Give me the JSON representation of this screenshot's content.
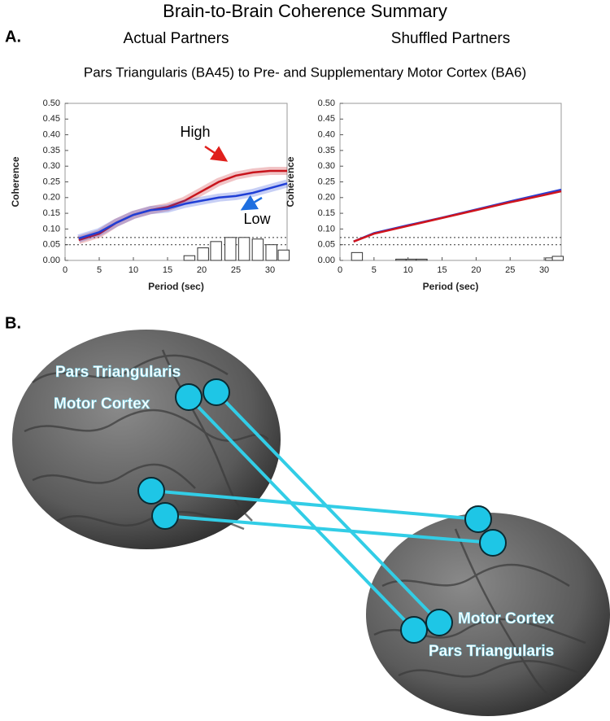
{
  "title": "Brain-to-Brain Coherence Summary",
  "panel_a_label": "A.",
  "subtitle": "Pars Triangularis (BA45) to Pre- and Supplementary Motor Cortex (BA6)",
  "panel_b_label": "B.",
  "brain_labels": {
    "left": [
      "Pars Triangularis",
      "Motor Cortex"
    ],
    "right": [
      "Motor Cortex",
      "Pars Triangularis"
    ]
  },
  "chart_data": [
    {
      "type": "line",
      "title": "Actual Partners",
      "x_label": "Period (sec)",
      "y_label": "Coherence",
      "xlim": [
        0,
        32.5
      ],
      "xticks": [
        0,
        5,
        10,
        15,
        20,
        25,
        30
      ],
      "ylim": [
        0,
        0.5
      ],
      "yticks": [
        {
          "value": 0,
          "label": "0.00"
        },
        {
          "value": 0.05,
          "label": "0.05"
        },
        {
          "value": 0.1,
          "label": "0.10"
        },
        {
          "value": 0.15,
          "label": "0.15"
        },
        {
          "value": 0.2,
          "label": "0.20"
        },
        {
          "value": 0.25,
          "label": "0.25"
        },
        {
          "value": 0.3,
          "label": "0.30"
        },
        {
          "value": 0.35,
          "label": "0.35"
        },
        {
          "value": 0.4,
          "label": "0.40"
        },
        {
          "value": 0.45,
          "label": "0.45"
        },
        {
          "value": 0.5,
          "label": "0.50"
        }
      ],
      "reference_lines": [
        0.05,
        0.073
      ],
      "x": [
        2,
        5,
        7.5,
        10,
        12.5,
        15,
        17.5,
        20,
        22.5,
        25,
        27.5,
        30,
        32.5
      ],
      "series": [
        {
          "name": "High",
          "color": "#c8141c",
          "values": [
            0.065,
            0.085,
            0.12,
            0.145,
            0.16,
            0.17,
            0.19,
            0.22,
            0.25,
            0.27,
            0.28,
            0.285,
            0.285
          ]
        },
        {
          "name": "Low",
          "color": "#1f3fd6",
          "values": [
            0.07,
            0.09,
            0.12,
            0.145,
            0.16,
            0.165,
            0.18,
            0.19,
            0.2,
            0.205,
            0.215,
            0.23,
            0.245
          ]
        }
      ],
      "bars": {
        "x": [
          18.2,
          20.2,
          22.1,
          24.2,
          26.2,
          28.2,
          30.2,
          32
        ],
        "values": [
          0.015,
          0.04,
          0.06,
          0.073,
          0.073,
          0.068,
          0.05,
          0.033
        ]
      }
    },
    {
      "type": "line",
      "title": "Shuffled Partners",
      "x_label": "Period (sec)",
      "y_label": "Coherence",
      "xlim": [
        0,
        32.5
      ],
      "xticks": [
        0,
        5,
        10,
        15,
        20,
        25,
        30
      ],
      "ylim": [
        0,
        0.5
      ],
      "yticks": [
        {
          "value": 0,
          "label": "0.00"
        },
        {
          "value": 0.05,
          "label": "0.05"
        },
        {
          "value": 0.1,
          "label": "0.10"
        },
        {
          "value": 0.15,
          "label": "0.15"
        },
        {
          "value": 0.2,
          "label": "0.20"
        },
        {
          "value": 0.25,
          "label": "0.25"
        },
        {
          "value": 0.3,
          "label": "0.30"
        },
        {
          "value": 0.35,
          "label": "0.35"
        },
        {
          "value": 0.4,
          "label": "0.40"
        },
        {
          "value": 0.45,
          "label": "0.45"
        },
        {
          "value": 0.5,
          "label": "0.50"
        }
      ],
      "reference_lines": [
        0.05,
        0.073
      ],
      "x": [
        2,
        5,
        10,
        15,
        20,
        25,
        30,
        32.5
      ],
      "series": [
        {
          "color": "#2c3fd0",
          "values": [
            0.06,
            0.087,
            0.112,
            0.136,
            0.162,
            0.188,
            0.213,
            0.225
          ]
        },
        {
          "color": "#d0141c",
          "values": [
            0.06,
            0.085,
            0.11,
            0.135,
            0.16,
            0.185,
            0.208,
            0.22
          ]
        }
      ],
      "bars": {
        "x": [
          2.5,
          9,
          10.5,
          12,
          31,
          32
        ],
        "values": [
          0.025,
          0.004,
          0.004,
          0.004,
          0.008,
          0.013
        ]
      }
    }
  ]
}
